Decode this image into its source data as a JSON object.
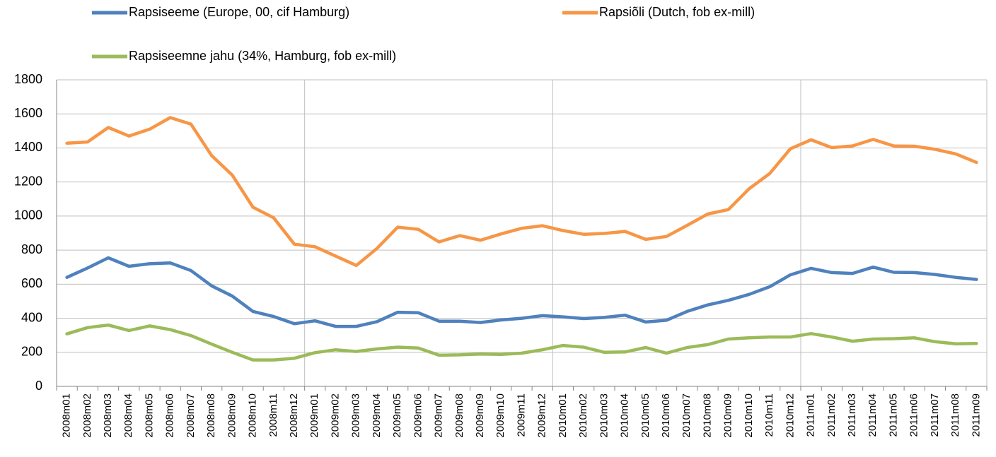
{
  "chart_data": {
    "type": "line",
    "categories": [
      "2008m01",
      "2008m02",
      "2008m03",
      "2008m04",
      "2008m05",
      "2008m06",
      "2008m07",
      "2008m08",
      "2008m09",
      "2008m10",
      "2008m11",
      "2008m12",
      "2009m01",
      "2009m02",
      "2009m03",
      "2009m04",
      "2009m05",
      "2009m06",
      "2009m07",
      "2009m08",
      "2009m09",
      "2009m10",
      "2009m11",
      "2009m12",
      "2010m01",
      "2010m02",
      "2010m03",
      "2010m04",
      "2010m05",
      "2010m06",
      "2010m07",
      "2010m08",
      "2010m09",
      "2010m10",
      "2010m11",
      "2010m12",
      "2011m01",
      "2011m02",
      "2011m03",
      "2011m04",
      "2011m05",
      "2011m06",
      "2011m07",
      "2011m08",
      "2011m09"
    ],
    "series": [
      {
        "name": "Rapsiseeme (Europe, 00, cif Hamburg)",
        "color": "#4f81bd",
        "values": [
          640,
          695,
          755,
          705,
          720,
          725,
          680,
          590,
          530,
          440,
          410,
          368,
          385,
          352,
          352,
          380,
          435,
          432,
          383,
          383,
          375,
          390,
          400,
          415,
          408,
          398,
          405,
          418,
          378,
          388,
          440,
          478,
          505,
          540,
          585,
          655,
          693,
          668,
          663,
          700,
          670,
          668,
          657,
          640,
          628
        ]
      },
      {
        "name": "Rapsiõli (Dutch, fob ex-mill)",
        "color": "#f79646",
        "values": [
          1428,
          1435,
          1520,
          1470,
          1510,
          1578,
          1540,
          1355,
          1240,
          1052,
          990,
          835,
          820,
          765,
          710,
          810,
          935,
          922,
          848,
          885,
          858,
          895,
          928,
          943,
          915,
          893,
          898,
          910,
          863,
          880,
          945,
          1012,
          1038,
          1160,
          1250,
          1395,
          1448,
          1402,
          1412,
          1450,
          1412,
          1410,
          1392,
          1365,
          1315
        ]
      },
      {
        "name": "Rapsiseemne jahu (34%, Hamburg, fob ex-mill)",
        "color": "#9bbb59",
        "values": [
          308,
          345,
          360,
          328,
          355,
          333,
          298,
          248,
          200,
          155,
          155,
          165,
          198,
          215,
          205,
          220,
          230,
          225,
          183,
          185,
          190,
          188,
          195,
          215,
          240,
          230,
          200,
          202,
          228,
          195,
          228,
          245,
          278,
          285,
          290,
          290,
          310,
          290,
          265,
          278,
          280,
          285,
          262,
          250,
          252
        ]
      }
    ],
    "ylim": [
      0,
      1800
    ],
    "yticks": [
      0,
      200,
      400,
      600,
      800,
      1000,
      1200,
      1400,
      1600,
      1800
    ],
    "grid": true,
    "legend": "top"
  }
}
